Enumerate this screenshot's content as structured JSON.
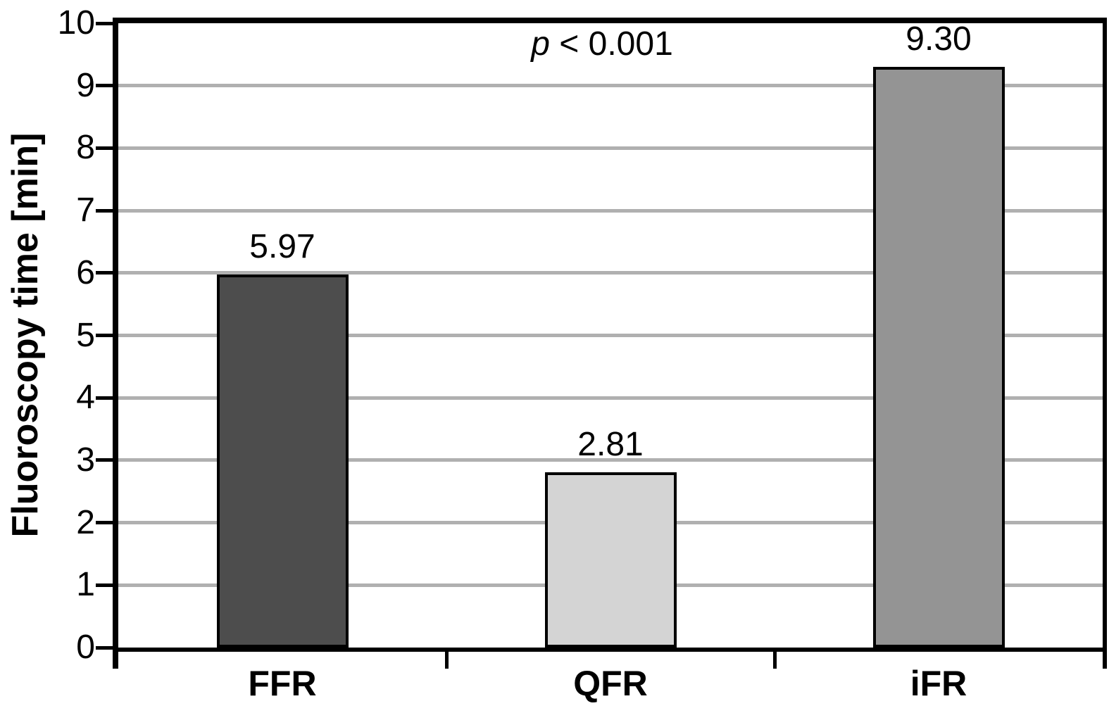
{
  "chart_data": {
    "type": "bar",
    "title": "",
    "xlabel": "",
    "ylabel": "Fluoroscopy time [min]",
    "categories": [
      "FFR",
      "QFR",
      "iFR"
    ],
    "values": [
      5.97,
      2.81,
      9.3
    ],
    "value_labels": [
      "5.97",
      "2.81",
      "9.30"
    ],
    "bar_colors": [
      "#4d4d4d",
      "#d4d4d4",
      "#949494"
    ],
    "bar_border_color": "#000000",
    "ylim": [
      0,
      10
    ],
    "ytick_labels": [
      "0",
      "1",
      "2",
      "3",
      "4",
      "5",
      "6",
      "7",
      "8",
      "9",
      "10"
    ],
    "grid": true,
    "grid_color": "#b0b0b0",
    "axis_color": "#000000",
    "legend": null,
    "annotation": {
      "italic": "p",
      "rest": " < 0.001"
    }
  }
}
